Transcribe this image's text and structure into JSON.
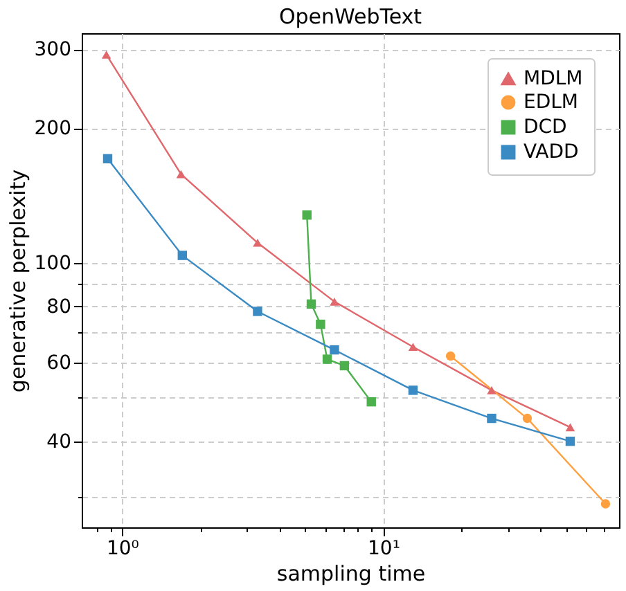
{
  "chart_data": {
    "type": "line",
    "title": "OpenWebText",
    "xlabel": "sampling time",
    "ylabel": "generative perplexity",
    "log": "xy",
    "grid": true,
    "legend": "top right",
    "line_style": "solid",
    "xlim": [
      0.7,
      80
    ],
    "ylim": [
      25.7,
      326
    ],
    "xticks": [
      {
        "value": 0.8,
        "label": null
      },
      {
        "value": 0.9,
        "label": null
      },
      {
        "value": 1,
        "label": "10⁰"
      },
      {
        "value": 2,
        "label": null
      },
      {
        "value": 3,
        "label": null
      },
      {
        "value": 4,
        "label": null
      },
      {
        "value": 5,
        "label": null
      },
      {
        "value": 6,
        "label": null
      },
      {
        "value": 7,
        "label": null
      },
      {
        "value": 8,
        "label": null
      },
      {
        "value": 9,
        "label": null
      },
      {
        "value": 10,
        "label": "10¹"
      },
      {
        "value": 20,
        "label": null
      },
      {
        "value": 30,
        "label": null
      },
      {
        "value": 40,
        "label": null
      },
      {
        "value": 50,
        "label": null
      },
      {
        "value": 60,
        "label": null
      },
      {
        "value": 70,
        "label": null
      }
    ],
    "yticks": [
      {
        "value": 30,
        "label": null
      },
      40,
      {
        "value": 50,
        "label": null
      },
      60,
      {
        "value": 70,
        "label": null
      },
      80,
      {
        "value": 90,
        "label": null
      },
      100,
      200,
      300
    ],
    "series": [
      {
        "name": "MDLM",
        "color": "#e0676b",
        "marker": "triangle",
        "x": [
          0.87,
          1.68,
          3.3,
          6.5,
          13.0,
          26,
          52
        ],
        "values": [
          292,
          158,
          111,
          82,
          65,
          52,
          43
        ]
      },
      {
        "name": "EDLM",
        "color": "#ffa040",
        "marker": "circle",
        "x": [
          18.1,
          35.6,
          71
        ],
        "values": [
          62,
          45,
          29
        ]
      },
      {
        "name": "DCD",
        "color": "#4cb04c",
        "marker": "square",
        "x": [
          5.1,
          5.3,
          5.75,
          6.1,
          7.1,
          9.0
        ],
        "values": [
          128,
          81,
          73,
          61,
          59,
          49
        ]
      },
      {
        "name": "VADD",
        "color": "#3a8ac4",
        "marker": "square",
        "x": [
          0.88,
          1.7,
          3.3,
          6.5,
          13.0,
          26,
          52
        ],
        "values": [
          171,
          104,
          78,
          64,
          52,
          45,
          40
        ]
      }
    ]
  }
}
